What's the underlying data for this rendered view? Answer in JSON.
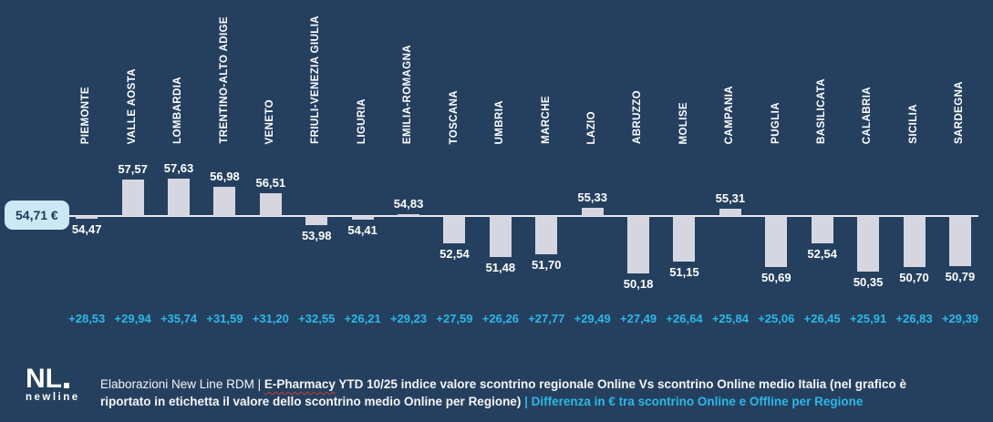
{
  "colors": {
    "background": "#25405f",
    "bar": "#d5d6e0",
    "accent_cyan": "#2bb8e6",
    "badge_background": "#cde8f5",
    "badge_text": "#1c3a58",
    "baseline_line": "#e6e8ee",
    "text": "#ffffff",
    "spellcheck_underline": "#cc3b33"
  },
  "chart_data": {
    "type": "bar",
    "title": "",
    "grid": false,
    "legend": false,
    "baseline_value": 54.71,
    "baseline_label": "54,71 €",
    "ylim": [
      49.5,
      58.5
    ],
    "regions": [
      {
        "name": "PIEMONTE",
        "value": 54.47,
        "value_label": "54,47",
        "diff_label": "+28,53"
      },
      {
        "name": "VALLE AOSTA",
        "value": 57.57,
        "value_label": "57,57",
        "diff_label": "+29,94"
      },
      {
        "name": "LOMBARDIA",
        "value": 57.63,
        "value_label": "57,63",
        "diff_label": "+35,74"
      },
      {
        "name": "TRENTINO-ALTO ADIGE",
        "value": 56.98,
        "value_label": "56,98",
        "diff_label": "+31,59"
      },
      {
        "name": "VENETO",
        "value": 56.51,
        "value_label": "56,51",
        "diff_label": "+31,20"
      },
      {
        "name": "FRIULI-VENEZIA GIULIA",
        "value": 53.98,
        "value_label": "53,98",
        "diff_label": "+32,55"
      },
      {
        "name": "LIGURIA",
        "value": 54.41,
        "value_label": "54,41",
        "diff_label": "+26,21"
      },
      {
        "name": "EMILIA-ROMAGNA",
        "value": 54.83,
        "value_label": "54,83",
        "diff_label": "+29,23"
      },
      {
        "name": "TOSCANA",
        "value": 52.54,
        "value_label": "52,54",
        "diff_label": "+27,59"
      },
      {
        "name": "UMBRIA",
        "value": 51.48,
        "value_label": "51,48",
        "diff_label": "+26,26"
      },
      {
        "name": "MARCHE",
        "value": 51.7,
        "value_label": "51,70",
        "diff_label": "+27,77"
      },
      {
        "name": "LAZIO",
        "value": 55.33,
        "value_label": "55,33",
        "diff_label": "+29,49"
      },
      {
        "name": "ABRUZZO",
        "value": 50.18,
        "value_label": "50,18",
        "diff_label": "+27,49"
      },
      {
        "name": "MOLISE",
        "value": 51.15,
        "value_label": "51,15",
        "diff_label": "+26,64"
      },
      {
        "name": "CAMPANIA",
        "value": 55.31,
        "value_label": "55,31",
        "diff_label": "+25,84"
      },
      {
        "name": "PUGLIA",
        "value": 50.69,
        "value_label": "50,69",
        "diff_label": "+25,06"
      },
      {
        "name": "BASILICATA",
        "value": 52.54,
        "value_label": "52,54",
        "diff_label": "+26,45"
      },
      {
        "name": "CALABRIA",
        "value": 50.35,
        "value_label": "50,35",
        "diff_label": "+25,91"
      },
      {
        "name": "SICILIA",
        "value": 50.7,
        "value_label": "50,70",
        "diff_label": "+26,83"
      },
      {
        "name": "SARDEGNA",
        "value": 50.79,
        "value_label": "50,79",
        "diff_label": "+29,39"
      }
    ]
  },
  "logo": {
    "mark": "NL",
    "wordmark": "newline"
  },
  "footer": {
    "credit_prefix": "Elaborazioni New Line RDM | ",
    "epharmacy_word": "E-Pharmacy",
    "description": " YTD 10/25 indice valore scontrino regionale Online Vs scontrino Online medio Italia (nel grafico è riportato in etichetta il valore dello scontrino medio Online per Regione) ",
    "highlight": "| Differenza in € tra scontrino Online e Offline per Regione"
  }
}
